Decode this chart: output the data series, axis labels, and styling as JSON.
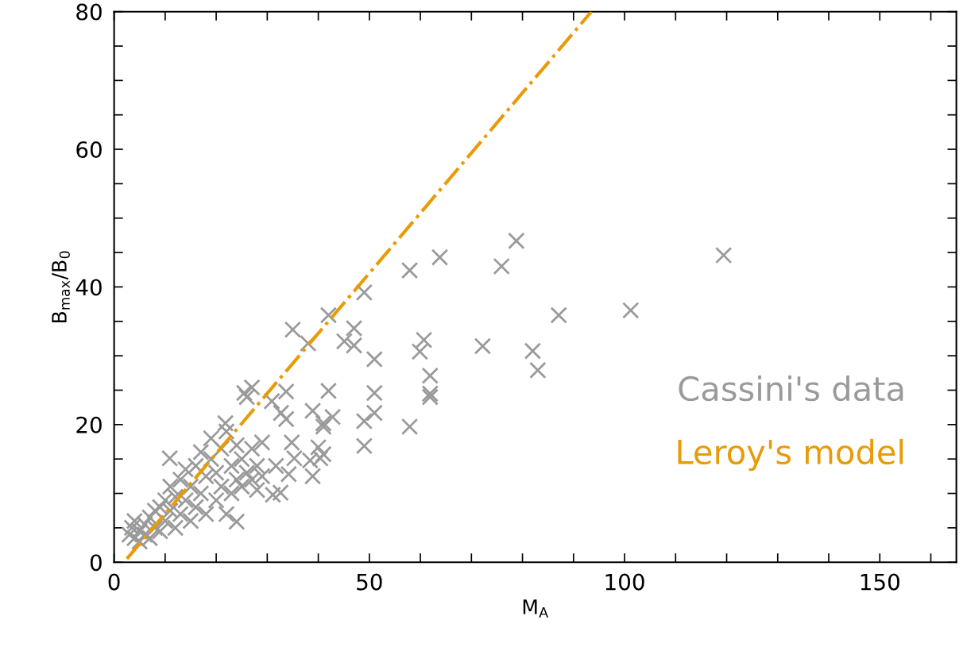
{
  "chart_data": {
    "type": "scatter",
    "xlabel": "M$_{A}$",
    "ylabel": "B$_{max}$/B$_{0}$",
    "xlim": [
      0,
      165
    ],
    "ylim": [
      0,
      80
    ],
    "xticks": [
      0,
      {
        "value": 10,
        "label": null
      },
      {
        "value": 20,
        "label": null
      },
      {
        "value": 30,
        "label": null
      },
      {
        "value": 40,
        "label": null
      },
      50,
      {
        "value": 60,
        "label": null
      },
      {
        "value": 70,
        "label": null
      },
      {
        "value": 80,
        "label": null
      },
      {
        "value": 90,
        "label": null
      },
      100,
      {
        "value": 110,
        "label": null
      },
      {
        "value": 120,
        "label": null
      },
      {
        "value": 130,
        "label": null
      },
      {
        "value": 140,
        "label": null
      },
      150,
      {
        "value": 160,
        "label": null
      }
    ],
    "yticks": [
      0,
      {
        "value": 5,
        "label": null
      },
      {
        "value": 10,
        "label": null
      },
      {
        "value": 15,
        "label": null
      },
      20,
      {
        "value": 25,
        "label": null
      },
      {
        "value": 30,
        "label": null
      },
      {
        "value": 35,
        "label": null
      },
      40,
      {
        "value": 45,
        "label": null
      },
      {
        "value": 50,
        "label": null
      },
      {
        "value": 55,
        "label": null
      },
      60,
      {
        "value": 65,
        "label": null
      },
      {
        "value": 70,
        "label": null
      },
      {
        "value": 75,
        "label": null
      },
      80
    ],
    "grid": false,
    "legend": false,
    "series": [
      {
        "name": "Cassini's data",
        "marker": "cross",
        "color": "#9a9a9a",
        "x": [
          78.8,
          75.9,
          119.4,
          87.1,
          101.2,
          72.2,
          82.0,
          83.0,
          63.8,
          57.9,
          49.0,
          42.0,
          35.0,
          38.0,
          47.0,
          45.1,
          47.0,
          51.0,
          60.7,
          59.9,
          61.9,
          61.9,
          61.9,
          57.9,
          51.0,
          51.0,
          49.0,
          49.0,
          42.0,
          42.8,
          41.0,
          38.9,
          33.7,
          30.9,
          27.0,
          25.5,
          33.7,
          32.7,
          34.8,
          40.0,
          41.0,
          38.4,
          41.0,
          40.4,
          38.9,
          32.6,
          31.1,
          35.3,
          31.7,
          34.2,
          29.0,
          24.0,
          10.9,
          21.8,
          3,
          3.5,
          4,
          4,
          5,
          5,
          6,
          6,
          7,
          7,
          8,
          8,
          9,
          9,
          10,
          10,
          11,
          11,
          12,
          12,
          13,
          13,
          14,
          14,
          15,
          15,
          16,
          16,
          17,
          17,
          18,
          18,
          19,
          19,
          20,
          20,
          21,
          21,
          22,
          22,
          23,
          23,
          24,
          24,
          25,
          25,
          26,
          26,
          27,
          27,
          28,
          28,
          29
        ],
        "values": [
          46.7,
          43.0,
          44.6,
          35.9,
          36.6,
          31.4,
          30.7,
          27.9,
          44.3,
          42.4,
          39.2,
          35.9,
          33.8,
          31.8,
          34.0,
          32.1,
          31.5,
          29.5,
          32.3,
          30.6,
          27.1,
          24.5,
          24.0,
          19.7,
          24.6,
          21.7,
          20.5,
          16.9,
          24.9,
          21.1,
          20.2,
          22.0,
          24.8,
          23.4,
          25.4,
          24.6,
          20.8,
          21.7,
          17.4,
          16.7,
          15.7,
          14.8,
          19.7,
          15.1,
          12.5,
          10.1,
          9.8,
          15.1,
          14.0,
          12.8,
          17.4,
          5.9,
          15.1,
          20.2,
          4,
          5,
          3.5,
          6,
          4.5,
          3,
          5.5,
          4,
          6.5,
          3.5,
          5,
          7.5,
          4.5,
          8,
          6,
          9,
          7.5,
          11,
          5,
          9.5,
          7,
          12,
          9,
          13.5,
          6,
          11,
          8,
          14,
          10,
          16,
          7,
          12.5,
          15,
          18,
          9,
          13,
          11,
          16.5,
          19,
          7,
          14,
          10,
          17,
          12,
          11,
          15,
          13,
          24,
          16.5,
          12,
          14,
          10.5,
          12.5
        ]
      },
      {
        "name": "Leroy's model",
        "type": "line",
        "line_style": "dashdot",
        "color": "#e89b06",
        "x": [
          2.5,
          93.5
        ],
        "values": [
          0.5,
          80
        ]
      }
    ]
  }
}
